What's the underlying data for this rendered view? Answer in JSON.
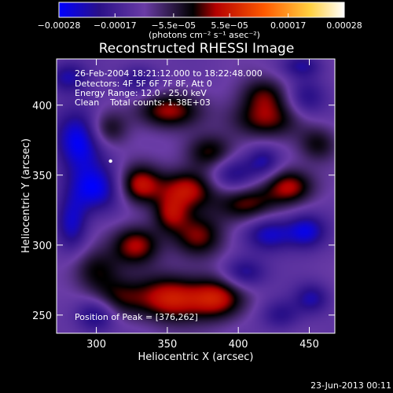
{
  "chart_data": {
    "type": "heatmap",
    "title": "Reconstructed RHESSI Image",
    "xlabel": "Heliocentric X (arcsec)",
    "ylabel": "Heliocentric Y (arcsec)",
    "xlim": [
      272,
      468
    ],
    "ylim": [
      237,
      433
    ],
    "x_ticks": [
      300,
      350,
      400,
      450
    ],
    "y_ticks": [
      250,
      300,
      350,
      400
    ],
    "colorbar": {
      "min": -0.00028,
      "max": 0.00028,
      "ticks": [
        -0.00028,
        -0.00017,
        -5.5e-05,
        5.5e-05,
        0.00017,
        0.00028
      ],
      "tick_labels": [
        "−0.00028",
        "−0.00017",
        "−5.5e−05",
        "5.5e−05",
        "0.00017",
        "0.00028"
      ],
      "units": "(photons cm⁻² s⁻¹ asec⁻²)",
      "colormap": [
        "#0000ff",
        "#2a1088",
        "#6a3ca6",
        "#000000",
        "#b40000",
        "#ff5a00",
        "#ffd040",
        "#ffffff"
      ]
    },
    "annotations": {
      "time_range": "26-Feb-2004 18:21:12.000 to 18:22:48.000",
      "detectors": "Detectors: 4F 5F 6F 7F 8F, Att 0",
      "energy_range": "Energy Range: 12.0 - 25.0 keV",
      "clean": "Clean",
      "total_counts": "Total counts: 1.38E+03",
      "peak_position": "Position of Peak = [376,262]"
    },
    "timestamp": "23-Jun-2013 00:11",
    "marker": {
      "x": 310,
      "y": 360
    },
    "peak": {
      "x": 376,
      "y": 262
    },
    "blobs": [
      {
        "x": 352,
        "y": 262,
        "sx": 16,
        "sy": 12,
        "a": 1.0
      },
      {
        "x": 385,
        "y": 262,
        "sx": 14,
        "sy": 11,
        "a": 0.95
      },
      {
        "x": 315,
        "y": 262,
        "sx": 14,
        "sy": 10,
        "a": 0.6
      },
      {
        "x": 300,
        "y": 282,
        "sx": 12,
        "sy": 11,
        "a": 0.6
      },
      {
        "x": 328,
        "y": 300,
        "sx": 12,
        "sy": 10,
        "a": 0.9
      },
      {
        "x": 372,
        "y": 306,
        "sx": 13,
        "sy": 11,
        "a": 0.75
      },
      {
        "x": 364,
        "y": 340,
        "sx": 14,
        "sy": 10,
        "a": 0.95
      },
      {
        "x": 405,
        "y": 330,
        "sx": 15,
        "sy": 10,
        "a": 0.8
      },
      {
        "x": 436,
        "y": 342,
        "sx": 12,
        "sy": 9,
        "a": 0.9
      },
      {
        "x": 330,
        "y": 343,
        "sx": 11,
        "sy": 10,
        "a": 0.95
      },
      {
        "x": 352,
        "y": 322,
        "sx": 9,
        "sy": 9,
        "a": 0.7
      },
      {
        "x": 380,
        "y": 366,
        "sx": 12,
        "sy": 9,
        "a": 0.7
      },
      {
        "x": 308,
        "y": 383,
        "sx": 10,
        "sy": 9,
        "a": 0.6
      },
      {
        "x": 350,
        "y": 396,
        "sx": 16,
        "sy": 9,
        "a": 0.85
      },
      {
        "x": 418,
        "y": 390,
        "sx": 18,
        "sy": 10,
        "a": 0.75
      },
      {
        "x": 418,
        "y": 408,
        "sx": 12,
        "sy": 9,
        "a": 0.6
      },
      {
        "x": 456,
        "y": 372,
        "sx": 10,
        "sy": 9,
        "a": 0.55
      },
      {
        "x": 300,
        "y": 250,
        "sx": 10,
        "sy": 9,
        "a": -0.7
      },
      {
        "x": 283,
        "y": 315,
        "sx": 8,
        "sy": 14,
        "a": -0.7
      },
      {
        "x": 300,
        "y": 340,
        "sx": 14,
        "sy": 12,
        "a": -0.85
      },
      {
        "x": 288,
        "y": 375,
        "sx": 12,
        "sy": 16,
        "a": -0.95
      },
      {
        "x": 280,
        "y": 420,
        "sx": 10,
        "sy": 8,
        "a": -0.6
      },
      {
        "x": 330,
        "y": 418,
        "sx": 10,
        "sy": 8,
        "a": -0.5
      },
      {
        "x": 397,
        "y": 350,
        "sx": 12,
        "sy": 10,
        "a": -0.7
      },
      {
        "x": 422,
        "y": 308,
        "sx": 12,
        "sy": 9,
        "a": -0.75
      },
      {
        "x": 448,
        "y": 310,
        "sx": 10,
        "sy": 9,
        "a": -0.8
      },
      {
        "x": 452,
        "y": 262,
        "sx": 9,
        "sy": 8,
        "a": -0.6
      },
      {
        "x": 404,
        "y": 280,
        "sx": 11,
        "sy": 8,
        "a": -0.65
      },
      {
        "x": 430,
        "y": 250,
        "sx": 10,
        "sy": 8,
        "a": -0.5
      },
      {
        "x": 418,
        "y": 360,
        "sx": 8,
        "sy": 8,
        "a": -0.55
      },
      {
        "x": 448,
        "y": 405,
        "sx": 10,
        "sy": 10,
        "a": -0.55
      },
      {
        "x": 445,
        "y": 428,
        "sx": 10,
        "sy": 6,
        "a": -0.5
      }
    ]
  }
}
